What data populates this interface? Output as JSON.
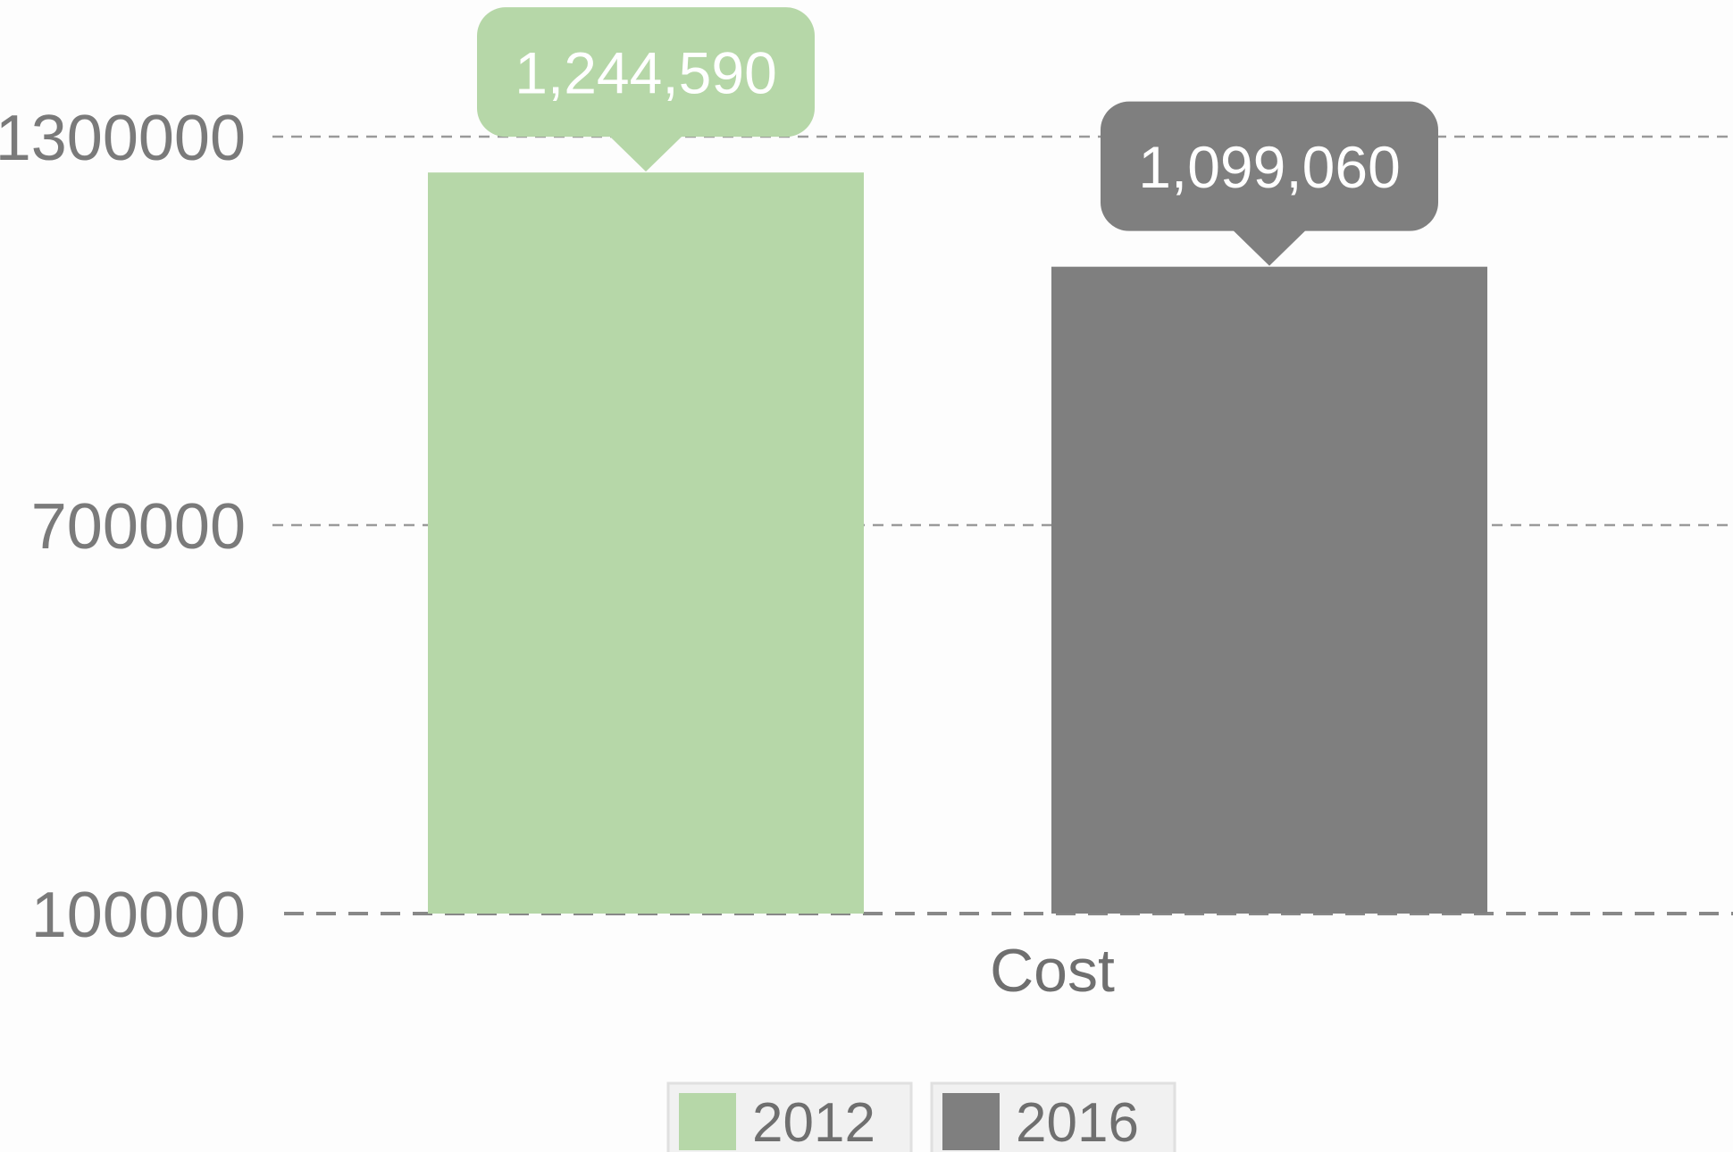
{
  "chart_data": {
    "type": "bar",
    "categories": [
      "Cost"
    ],
    "series": [
      {
        "name": "2012",
        "values": [
          1244590
        ],
        "label": "1,244,590",
        "color": "#b6d7a8"
      },
      {
        "name": "2016",
        "values": [
          1099060
        ],
        "label": "1,099,060",
        "color": "#7f7f7f"
      }
    ],
    "y_ticks": [
      {
        "value": 100000,
        "label": "100000"
      },
      {
        "value": 700000,
        "label": "700000"
      },
      {
        "value": 1300000,
        "label": "1300000"
      }
    ],
    "ylim": [
      100000,
      1300000
    ],
    "grid": true,
    "legend_position": "bottom-center",
    "title": "",
    "xlabel": "",
    "ylabel": ""
  }
}
